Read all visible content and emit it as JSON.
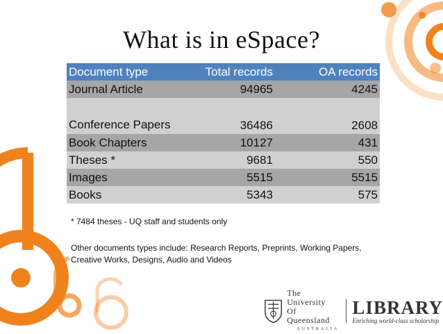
{
  "slide": {
    "title": "What is in eSpace?",
    "accent_color": "#f0821e",
    "header_color": "#4f81bd"
  },
  "table": {
    "headers": [
      "Document type",
      "Total records",
      "OA records"
    ],
    "rows": [
      {
        "type": "Journal Article",
        "total": "94965",
        "oa": "4245"
      },
      {
        "type": "Conference Papers",
        "total": "36486",
        "oa": "2608"
      },
      {
        "type": "Book Chapters",
        "total": "10127",
        "oa": "431"
      },
      {
        "type": "Theses *",
        "total": "9681",
        "oa": "550"
      },
      {
        "type": "Images",
        "total": "5515",
        "oa": "5515"
      },
      {
        "type": "Books",
        "total": "5343",
        "oa": "575"
      }
    ]
  },
  "notes": {
    "footnote": "* 7484 theses - UQ staff and students only",
    "other": "Other documents types include: Research Reports, Preprints, Working Papers, Creative Works, Designs, Audio and Videos"
  },
  "branding": {
    "uq_line1": "The University",
    "uq_line2": "Of Queensland",
    "uq_line3": "AUSTRALIA",
    "library": "LIBRARY",
    "tagline": "Enriching world-class scholarship",
    "crest_icon": "uq-crest-icon"
  }
}
